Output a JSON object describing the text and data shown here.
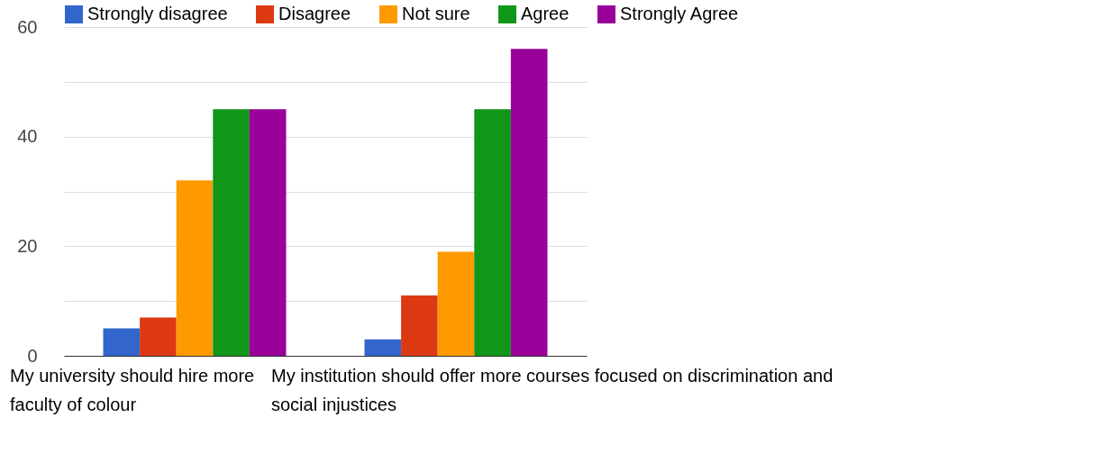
{
  "chart_data": {
    "type": "bar",
    "categories": [
      "My university should hire more faculty of colour",
      "My institution should offer more courses focused on discrimination and social injustices"
    ],
    "series": [
      {
        "name": "Strongly disagree",
        "color": "#3366cc",
        "values": [
          5,
          3
        ]
      },
      {
        "name": "Disagree",
        "color": "#dc3912",
        "values": [
          7,
          11
        ]
      },
      {
        "name": "Not sure",
        "color": "#ff9900",
        "values": [
          32,
          19
        ]
      },
      {
        "name": "Agree",
        "color": "#109618",
        "values": [
          45,
          45
        ]
      },
      {
        "name": "Strongly Agree",
        "color": "#990099",
        "values": [
          45,
          56
        ]
      }
    ],
    "ylim": [
      0,
      60
    ],
    "yticks": [
      0,
      {
        "value": 10,
        "label": null
      },
      20,
      {
        "value": 30,
        "label": null
      },
      40,
      {
        "value": 50,
        "label": null
      },
      60
    ],
    "grid": "y",
    "legend": "top"
  }
}
